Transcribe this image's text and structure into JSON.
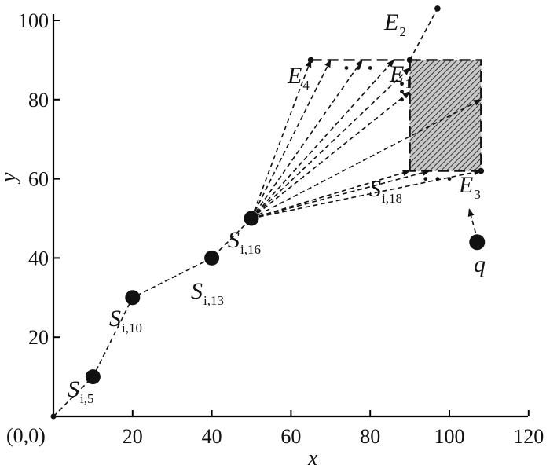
{
  "axes": {
    "x_title": "x",
    "y_title": "y",
    "origin_label": "(0,0)",
    "x_ticks": [
      20,
      40,
      60,
      80,
      100,
      120
    ],
    "y_ticks": [
      20,
      40,
      60,
      80,
      100
    ]
  },
  "trajectory": [
    {
      "id": "s5",
      "x": 10,
      "y": 10,
      "base": "S",
      "sub": "i,5"
    },
    {
      "id": "s10",
      "x": 20,
      "y": 30,
      "base": "S",
      "sub": "i,10"
    },
    {
      "id": "s13",
      "x": 40,
      "y": 40,
      "base": "S",
      "sub": "i,13"
    },
    {
      "id": "s16",
      "x": 50,
      "y": 50,
      "base": "S",
      "sub": "i,16"
    }
  ],
  "s18_label": {
    "base": "S",
    "sub": "i,18"
  },
  "query": {
    "x": 107,
    "y": 44,
    "label": "q"
  },
  "endpoints": [
    {
      "id": "e1",
      "x": 90,
      "y": 90,
      "base": "E",
      "sub": "1"
    },
    {
      "id": "e2",
      "x": 97,
      "y": 103,
      "base": "E",
      "sub": "2"
    },
    {
      "id": "e3",
      "x": 108,
      "y": 62,
      "base": "E",
      "sub": "3"
    },
    {
      "id": "e4",
      "x": 65,
      "y": 90,
      "base": "E",
      "sub": "4"
    }
  ],
  "rectangle": {
    "x1": 90,
    "x2": 108,
    "y1": 62,
    "y2": 90,
    "shaded_x1": 90,
    "shaded_x2": 108
  },
  "ray_targets": [
    [
      65,
      90
    ],
    [
      70,
      90
    ],
    [
      78,
      90
    ],
    [
      86,
      90
    ],
    [
      90,
      88
    ],
    [
      90,
      82
    ],
    [
      108,
      80
    ],
    [
      90,
      62
    ],
    [
      95,
      62
    ],
    [
      108,
      62
    ]
  ],
  "ellipsis_dots": [
    [
      74,
      88
    ],
    [
      77,
      88
    ],
    [
      80,
      88
    ],
    [
      88,
      84
    ],
    [
      88,
      82
    ],
    [
      88,
      80
    ],
    [
      94,
      60
    ],
    [
      97,
      60
    ],
    [
      100,
      60
    ]
  ],
  "colors": {
    "ink": "#111111",
    "hatch": "#333333",
    "shade_bg": "#bdbdbd"
  }
}
